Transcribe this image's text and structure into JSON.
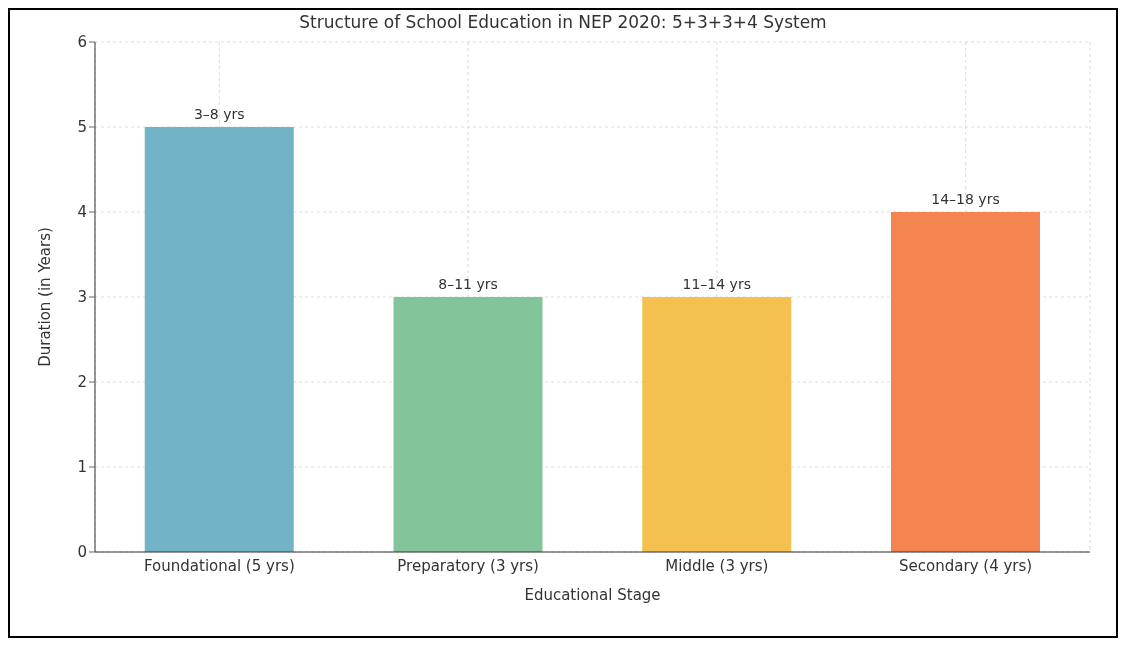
{
  "chart_data": {
    "type": "bar",
    "title": "Structure of School Education in NEP 2020: 5+3+3+4 System",
    "xlabel": "Educational Stage",
    "ylabel": "Duration (in Years)",
    "categories": [
      "Foundational (5 yrs)",
      "Preparatory (3 yrs)",
      "Middle (3 yrs)",
      "Secondary (4 yrs)"
    ],
    "values": [
      5,
      3,
      3,
      4
    ],
    "colors": [
      "#72b3c5",
      "#84c49a",
      "#f4c04f",
      "#f4844f"
    ],
    "value_labels": [
      "3–8 yrs",
      "8–11 yrs",
      "11–14 yrs",
      "14–18 yrs"
    ],
    "ylim": [
      0,
      6
    ],
    "yticks": [
      0,
      1,
      2,
      3,
      4,
      5,
      6
    ],
    "grid": true
  }
}
